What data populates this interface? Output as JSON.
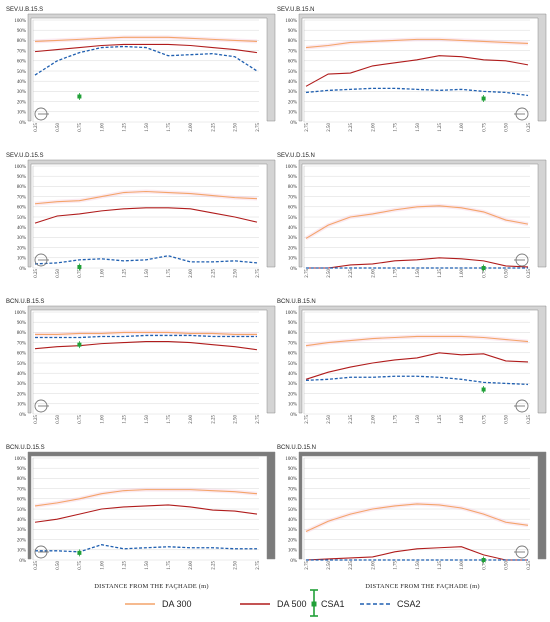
{
  "colors": {
    "da300": "#f4a46a",
    "da500": "#b01c1c",
    "csa1": "#21a038",
    "csa2": "#1f5fb0",
    "frame_light": "#d4d4d4",
    "frame_dark": "#7b7b7b",
    "grid": "#d8d8d8",
    "band": "#f3c2d8"
  },
  "legend": {
    "da300": "DA 300",
    "da500": "DA 500",
    "csa1": "CSA1",
    "csa2": "CSA2"
  },
  "chart_data": [
    {
      "type": "line",
      "title": "SEV.U.B.15.S",
      "xlabel": "",
      "ylim": [
        0,
        100
      ],
      "frame": "light",
      "window_icon_side": "left",
      "categories": [
        "0.25",
        "0.50",
        "0.75",
        "1.00",
        "1.25",
        "1.50",
        "1.75",
        "2.00",
        "2.25",
        "2.50",
        "2.75"
      ],
      "series": [
        {
          "key": "da300",
          "name": "DA 300",
          "values": [
            79,
            80,
            81,
            82,
            83,
            83,
            83,
            82,
            81,
            80,
            79
          ]
        },
        {
          "key": "da500",
          "name": "DA 500",
          "values": [
            69,
            71,
            73,
            75,
            76,
            76,
            76,
            75,
            73,
            71,
            68
          ]
        },
        {
          "key": "csa2",
          "name": "CSA2",
          "values": [
            46,
            60,
            68,
            73,
            74,
            73,
            65,
            66,
            67,
            64,
            50
          ]
        }
      ],
      "csa1": {
        "x": 2,
        "y": 25
      }
    },
    {
      "type": "line",
      "title": "SEV.U.B.15.N",
      "xlabel": "",
      "ylim": [
        0,
        100
      ],
      "frame": "light",
      "window_icon_side": "right",
      "categories": [
        "2.75",
        "2.50",
        "2.25",
        "2.00",
        "1.75",
        "1.50",
        "1.25",
        "1.00",
        "0.75",
        "0.50",
        "0.25"
      ],
      "series": [
        {
          "key": "da300",
          "name": "DA 300",
          "values": [
            73,
            75,
            78,
            79,
            80,
            81,
            81,
            80,
            79,
            78,
            77
          ]
        },
        {
          "key": "da500",
          "name": "DA 500",
          "values": [
            35,
            47,
            48,
            55,
            58,
            61,
            65,
            64,
            61,
            60,
            56
          ]
        },
        {
          "key": "csa2",
          "name": "CSA2",
          "values": [
            29,
            31,
            32,
            33,
            33,
            32,
            31,
            32,
            30,
            29,
            26
          ]
        }
      ],
      "csa1": {
        "x": 8,
        "y": 23
      }
    },
    {
      "type": "line",
      "title": "SEV.U.D.15.S",
      "xlabel": "",
      "ylim": [
        0,
        100
      ],
      "frame": "light",
      "window_icon_side": "left",
      "categories": [
        "0.25",
        "0.50",
        "0.75",
        "1.00",
        "1.25",
        "1.50",
        "1.75",
        "2.00",
        "2.25",
        "2.50",
        "2.75"
      ],
      "series": [
        {
          "key": "da300",
          "name": "DA 300",
          "values": [
            63,
            65,
            66,
            70,
            74,
            75,
            74,
            73,
            71,
            69,
            68
          ]
        },
        {
          "key": "da500",
          "name": "DA 500",
          "values": [
            44,
            51,
            53,
            56,
            58,
            59,
            59,
            58,
            54,
            50,
            45
          ]
        },
        {
          "key": "csa2",
          "name": "CSA2",
          "values": [
            4,
            5,
            8,
            9,
            7,
            8,
            12,
            6,
            6,
            7,
            5
          ]
        }
      ],
      "csa1": {
        "x": 2,
        "y": 1
      }
    },
    {
      "type": "line",
      "title": "SEV.U.D.15.N",
      "xlabel": "",
      "ylim": [
        0,
        100
      ],
      "frame": "light",
      "window_icon_side": "right",
      "categories": [
        "2.75",
        "2.50",
        "2.25",
        "2.00",
        "1.75",
        "1.50",
        "1.25",
        "1.00",
        "0.75",
        "0.50",
        "0.25"
      ],
      "series": [
        {
          "key": "da300",
          "name": "DA 300",
          "values": [
            29,
            42,
            50,
            53,
            57,
            60,
            61,
            59,
            55,
            47,
            43
          ]
        },
        {
          "key": "da500",
          "name": "DA 500",
          "values": [
            0,
            0,
            3,
            4,
            7,
            8,
            10,
            9,
            7,
            2,
            1
          ]
        },
        {
          "key": "csa2",
          "name": "CSA2",
          "values": [
            0,
            0,
            0,
            0,
            0,
            0,
            0,
            0,
            0,
            0,
            0
          ]
        }
      ],
      "csa1": {
        "x": 8,
        "y": 0
      }
    },
    {
      "type": "line",
      "title": "BCN.U.B.15.S",
      "xlabel": "",
      "ylim": [
        0,
        100
      ],
      "frame": "light",
      "window_icon_side": "left",
      "categories": [
        "0.25",
        "0.50",
        "0.75",
        "1.00",
        "1.25",
        "1.50",
        "1.75",
        "2.00",
        "2.25",
        "2.50",
        "2.75"
      ],
      "series": [
        {
          "key": "da300",
          "name": "DA 300",
          "values": [
            78,
            78,
            79,
            79,
            80,
            80,
            80,
            79,
            79,
            78,
            78
          ]
        },
        {
          "key": "da500",
          "name": "DA 500",
          "values": [
            64,
            66,
            67,
            69,
            70,
            71,
            71,
            70,
            68,
            66,
            63
          ]
        },
        {
          "key": "csa2",
          "name": "CSA2",
          "values": [
            75,
            75,
            75,
            76,
            76,
            77,
            77,
            77,
            76,
            76,
            76
          ]
        }
      ],
      "csa1": {
        "x": 2,
        "y": 68
      }
    },
    {
      "type": "line",
      "title": "BCN.U.B.15.N",
      "xlabel": "",
      "ylim": [
        0,
        100
      ],
      "frame": "light",
      "window_icon_side": "right",
      "categories": [
        "2.75",
        "2.50",
        "2.25",
        "2.00",
        "1.75",
        "1.50",
        "1.25",
        "1.00",
        "0.75",
        "0.50",
        "0.25"
      ],
      "series": [
        {
          "key": "da300",
          "name": "DA 300",
          "values": [
            67,
            70,
            72,
            74,
            75,
            76,
            76,
            76,
            75,
            73,
            71
          ]
        },
        {
          "key": "da500",
          "name": "DA 500",
          "values": [
            34,
            41,
            46,
            50,
            53,
            55,
            60,
            58,
            59,
            52,
            51
          ]
        },
        {
          "key": "csa2",
          "name": "CSA2",
          "values": [
            33,
            34,
            36,
            36,
            37,
            37,
            36,
            34,
            31,
            30,
            29
          ]
        }
      ],
      "csa1": {
        "x": 8,
        "y": 24
      }
    },
    {
      "type": "line",
      "title": "BCN.U.D.15.S",
      "xlabel": "DISTANCE FROM THE FAÇHADE (m)",
      "ylim": [
        0,
        100
      ],
      "frame": "dark",
      "window_icon_side": "left",
      "categories": [
        "0.25",
        "0.50",
        "0.75",
        "1.00",
        "1.25",
        "1.50",
        "1.75",
        "2.00",
        "2.25",
        "2.50",
        "2.75"
      ],
      "series": [
        {
          "key": "da300",
          "name": "DA 300",
          "values": [
            53,
            56,
            60,
            65,
            68,
            69,
            69,
            69,
            68,
            67,
            65
          ]
        },
        {
          "key": "da500",
          "name": "DA 500",
          "values": [
            37,
            40,
            45,
            50,
            52,
            53,
            54,
            52,
            49,
            48,
            45
          ]
        },
        {
          "key": "csa2",
          "name": "CSA2",
          "values": [
            9,
            9,
            8,
            15,
            11,
            12,
            13,
            12,
            12,
            11,
            11
          ]
        }
      ],
      "csa1": {
        "x": 2,
        "y": 7
      }
    },
    {
      "type": "line",
      "title": "BCN.U.D.15.N",
      "xlabel": "DISTANCE FROM THE FAÇHADE (m)",
      "ylim": [
        0,
        100
      ],
      "frame": "dark",
      "window_icon_side": "right",
      "categories": [
        "2.75",
        "2.50",
        "2.25",
        "2.00",
        "1.75",
        "1.50",
        "1.25",
        "1.00",
        "0.75",
        "0.50",
        "0.25"
      ],
      "series": [
        {
          "key": "da300",
          "name": "DA 300",
          "values": [
            28,
            38,
            45,
            50,
            53,
            55,
            54,
            51,
            45,
            37,
            34
          ]
        },
        {
          "key": "da500",
          "name": "DA 500",
          "values": [
            0,
            1,
            2,
            3,
            8,
            11,
            12,
            13,
            5,
            0,
            0
          ]
        },
        {
          "key": "csa2",
          "name": "CSA2",
          "values": [
            0,
            0,
            0,
            0,
            0,
            0,
            0,
            0,
            0,
            0,
            0
          ]
        }
      ],
      "csa1": {
        "x": 8,
        "y": 0
      }
    }
  ]
}
